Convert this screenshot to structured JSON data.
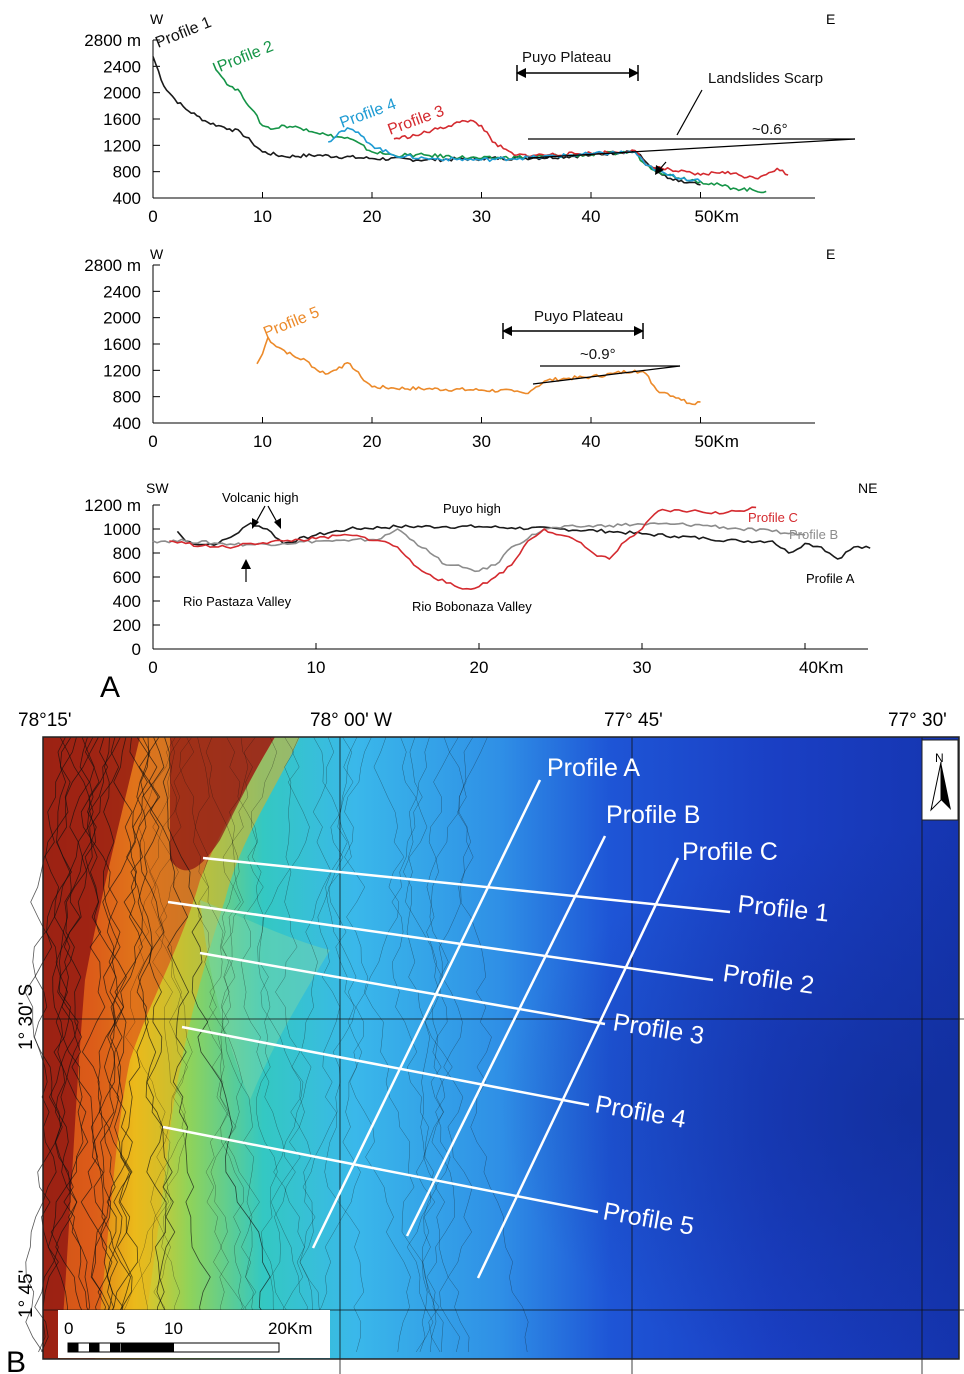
{
  "panel_a": {
    "letter": "A",
    "chart1": {
      "dir_left": "W",
      "dir_right": "E",
      "y_ticks": [
        "2800 m",
        "2400",
        "2000",
        "1600",
        "1200",
        "800",
        "400"
      ],
      "x_ticks": [
        "0",
        "10",
        "20",
        "30",
        "40",
        "50Km"
      ],
      "plateau_label": "Puyo Plateau",
      "scarp_label": "Landslides Scarp",
      "angle_label": "~0.6°",
      "series": [
        {
          "name": "Profile 1",
          "color": "#1a1a1a"
        },
        {
          "name": "Profile 2",
          "color": "#159447"
        },
        {
          "name": "Profile 3",
          "color": "#d42a2f"
        },
        {
          "name": "Profile 4",
          "color": "#1e9bd3"
        }
      ]
    },
    "chart2": {
      "dir_left": "W",
      "dir_right": "E",
      "y_ticks": [
        "2800 m",
        "2400",
        "2000",
        "1600",
        "1200",
        "800",
        "400"
      ],
      "x_ticks": [
        "0",
        "10",
        "20",
        "30",
        "40",
        "50Km"
      ],
      "plateau_label": "Puyo Plateau",
      "angle_label": "~0.9°",
      "series": [
        {
          "name": "Profile 5",
          "color": "#ec8a2a"
        }
      ]
    },
    "chart3": {
      "dir_left": "SW",
      "dir_right": "NE",
      "y_ticks": [
        "1200 m",
        "1000",
        "800",
        "600",
        "400",
        "200",
        "0"
      ],
      "x_ticks": [
        "0",
        "10",
        "20",
        "30",
        "40Km"
      ],
      "annotations": {
        "volcanic_high": "Volcanic high",
        "puyo_high": "Puyo high",
        "rio_pastaza": "Rio Pastaza Valley",
        "rio_bobonaza": "Rio Bobonaza Valley"
      },
      "series": [
        {
          "name": "Profile A",
          "color": "#1a1a1a"
        },
        {
          "name": "Profile B",
          "color": "#8c8c8c"
        },
        {
          "name": "Profile C",
          "color": "#d42a2f"
        }
      ]
    }
  },
  "panel_b": {
    "letter": "B",
    "top_coords": [
      "78°15'",
      "78° 00' W",
      "77° 45'",
      "77° 30'"
    ],
    "side_coords": [
      "1° 30' S",
      "1° 45'"
    ],
    "north_label": "N",
    "scale": {
      "ticks": [
        "0",
        "5",
        "10",
        "20Km"
      ]
    },
    "profiles": [
      "Profile A",
      "Profile B",
      "Profile C",
      "Profile 1",
      "Profile 2",
      "Profile 3",
      "Profile 4",
      "Profile 5"
    ]
  },
  "chart_data": [
    {
      "type": "line",
      "xlabel": "Km",
      "ylabel": "m",
      "xlim": [
        0,
        60
      ],
      "ylim": [
        400,
        2800
      ],
      "series": [
        {
          "name": "Profile 1",
          "x": [
            0,
            1,
            2,
            3,
            4,
            5,
            6,
            7,
            8,
            9,
            10,
            12,
            15,
            20,
            25,
            30,
            35,
            40,
            44,
            45,
            46,
            47,
            48,
            50
          ],
          "y": [
            2550,
            2100,
            1900,
            1750,
            1650,
            1550,
            1500,
            1450,
            1400,
            1250,
            1100,
            1030,
            1050,
            1000,
            980,
            1000,
            1010,
            1050,
            1120,
            950,
            800,
            700,
            650,
            600
          ]
        },
        {
          "name": "Profile 2",
          "x": [
            5.5,
            6,
            7,
            8,
            9,
            10,
            11,
            12,
            14,
            16,
            18,
            20,
            22,
            25,
            30,
            35,
            40,
            44,
            45,
            47,
            50,
            53,
            56
          ],
          "y": [
            2450,
            2300,
            2100,
            2000,
            1750,
            1500,
            1450,
            1500,
            1450,
            1350,
            1300,
            1100,
            1050,
            1050,
            1000,
            1030,
            1060,
            1100,
            900,
            750,
            650,
            550,
            500
          ]
        },
        {
          "name": "Profile 3",
          "x": [
            22,
            24,
            26,
            28,
            29,
            30,
            31,
            32,
            33,
            35,
            40,
            44,
            45,
            48,
            50,
            52,
            55,
            57,
            58
          ],
          "y": [
            1300,
            1350,
            1450,
            1550,
            1580,
            1500,
            1250,
            1150,
            1050,
            1050,
            1080,
            1120,
            900,
            800,
            750,
            800,
            700,
            850,
            750
          ]
        },
        {
          "name": "Profile 4",
          "x": [
            16,
            17,
            18,
            19,
            20,
            22,
            25,
            30,
            35,
            40,
            44,
            45,
            47,
            50
          ],
          "y": [
            1250,
            1400,
            1450,
            1350,
            1200,
            1050,
            1000,
            980,
            1020,
            1070,
            1100,
            900,
            750,
            650
          ]
        }
      ]
    },
    {
      "type": "line",
      "xlabel": "Km",
      "ylabel": "m",
      "xlim": [
        0,
        60
      ],
      "ylim": [
        400,
        2800
      ],
      "series": [
        {
          "name": "Profile 5",
          "x": [
            9.5,
            10,
            10.5,
            11,
            12,
            13,
            14,
            15,
            16,
            17,
            18,
            19,
            20,
            22,
            25,
            30,
            33,
            34,
            35,
            36,
            38,
            40,
            42,
            44,
            45,
            46,
            47,
            48,
            49,
            50
          ],
          "y": [
            1300,
            1450,
            1700,
            1600,
            1500,
            1400,
            1350,
            1200,
            1150,
            1250,
            1300,
            1100,
            950,
            930,
            920,
            900,
            880,
            850,
            950,
            1050,
            1080,
            1100,
            1150,
            1200,
            1150,
            900,
            850,
            780,
            700,
            720
          ]
        }
      ]
    },
    {
      "type": "line",
      "xlabel": "Km",
      "ylabel": "m",
      "xlim": [
        0,
        44
      ],
      "ylim": [
        0,
        1200
      ],
      "series": [
        {
          "name": "Profile A",
          "x": [
            1.5,
            2,
            3,
            4,
            5,
            6,
            7,
            8,
            10,
            12,
            15,
            18,
            20,
            22,
            25,
            28,
            30,
            32,
            34,
            36,
            38,
            39,
            40,
            41,
            42,
            43,
            44
          ],
          "y": [
            980,
            900,
            870,
            880,
            950,
            1050,
            1000,
            880,
            950,
            1000,
            1020,
            1020,
            1020,
            1010,
            1000,
            980,
            960,
            940,
            920,
            900,
            900,
            800,
            880,
            850,
            750,
            850,
            840
          ]
        },
        {
          "name": "Profile B",
          "x": [
            0,
            2,
            4,
            6,
            8,
            10,
            12,
            14,
            15,
            16,
            17,
            18,
            19,
            20,
            21,
            22,
            24,
            26,
            28,
            30,
            32,
            34,
            36,
            38,
            40
          ],
          "y": [
            900,
            900,
            880,
            870,
            880,
            900,
            900,
            920,
            1000,
            900,
            800,
            700,
            680,
            650,
            700,
            850,
            1000,
            1020,
            1030,
            1040,
            1040,
            1030,
            1000,
            980,
            950
          ]
        },
        {
          "name": "Profile C",
          "x": [
            1,
            2,
            3,
            4,
            5,
            6,
            8,
            10,
            12,
            14,
            15,
            16,
            17,
            18,
            19,
            20,
            21,
            22,
            23,
            24,
            25,
            26,
            27,
            28,
            29,
            30,
            31,
            33,
            35,
            37
          ],
          "y": [
            900,
            880,
            860,
            850,
            850,
            880,
            900,
            920,
            950,
            900,
            850,
            700,
            620,
            550,
            500,
            520,
            600,
            700,
            900,
            1000,
            950,
            900,
            800,
            750,
            900,
            1000,
            1150,
            1150,
            1130,
            1180
          ]
        }
      ]
    }
  ]
}
